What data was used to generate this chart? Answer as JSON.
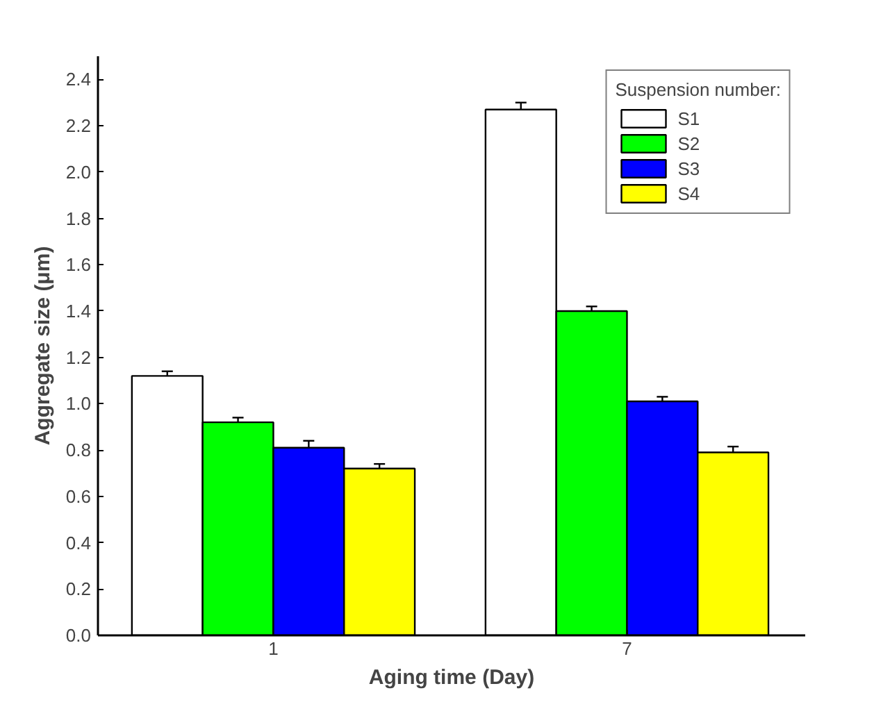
{
  "chart_data": {
    "type": "bar",
    "xlabel": "Aging time (Day)",
    "ylabel": "Aggregate size (μm)",
    "legend_title": "Suspension number:",
    "categories": [
      "1",
      "7"
    ],
    "series": [
      {
        "name": "S1",
        "color": "#ffffff",
        "values": [
          1.12,
          2.27
        ],
        "errors": [
          0.02,
          0.03
        ]
      },
      {
        "name": "S2",
        "color": "#00ff00",
        "values": [
          0.92,
          1.4
        ],
        "errors": [
          0.02,
          0.02
        ]
      },
      {
        "name": "S3",
        "color": "#0000ff",
        "values": [
          0.81,
          1.01
        ],
        "errors": [
          0.03,
          0.02
        ]
      },
      {
        "name": "S4",
        "color": "#ffff00",
        "values": [
          0.72,
          0.79
        ],
        "errors": [
          0.02,
          0.025
        ]
      }
    ],
    "ylim": [
      0,
      2.5
    ],
    "yticks": [
      {
        "value": 0,
        "label": "0.0"
      },
      {
        "value": 0.2,
        "label": "0.2"
      },
      {
        "value": 0.4,
        "label": "0.4"
      },
      {
        "value": 0.6,
        "label": "0.6"
      },
      {
        "value": 0.8,
        "label": "0.8"
      },
      {
        "value": 1.0,
        "label": "1.0"
      },
      {
        "value": 1.2,
        "label": "1.2"
      },
      {
        "value": 1.4,
        "label": "1.4"
      },
      {
        "value": 1.6,
        "label": "1.6"
      },
      {
        "value": 1.8,
        "label": "1.8"
      },
      {
        "value": 2.0,
        "label": "2.0"
      },
      {
        "value": 2.2,
        "label": "2.2"
      },
      {
        "value": 2.4,
        "label": "2.4"
      }
    ],
    "grid": false,
    "legend": "top right"
  }
}
